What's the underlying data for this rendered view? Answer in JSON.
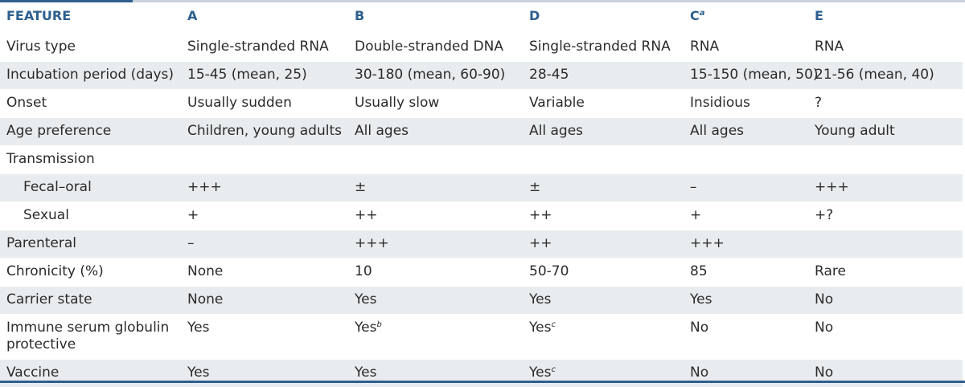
{
  "header": {
    "feature": "FEATURE",
    "a": "A",
    "b": "B",
    "d": "D",
    "c": "C",
    "c_mark": "a",
    "e": "E"
  },
  "rows": [
    {
      "label": "Virus type",
      "a": "Single-stranded RNA",
      "b": "Double-stranded DNA",
      "d": "Single-stranded RNA",
      "c": "RNA",
      "e": "RNA"
    },
    {
      "label": "Incubation period (days)",
      "a": "15-45 (mean, 25)",
      "b": "30-180 (mean, 60-90)",
      "d": "28-45",
      "c": "15-150 (mean, 50)",
      "e": "21-56 (mean, 40)"
    },
    {
      "label": "Onset",
      "a": "Usually sudden",
      "b": "Usually slow",
      "d": "Variable",
      "c": "Insidious",
      "e": "?"
    },
    {
      "label": "Age preference",
      "a": "Children, young adults",
      "b": "All ages",
      "d": "All ages",
      "c": "All ages",
      "e": "Young adult"
    },
    {
      "label": "Transmission",
      "a": "",
      "b": "",
      "d": "",
      "c": "",
      "e": ""
    },
    {
      "label": "Fecal–oral",
      "a": "+++",
      "b": "±",
      "d": "±",
      "c": "–",
      "e": "+++"
    },
    {
      "label": "Sexual",
      "a": "+",
      "b": "++",
      "d": "++",
      "c": "+",
      "e": "+?"
    },
    {
      "label": "Parenteral",
      "a": "–",
      "b": "+++",
      "d": "++",
      "c": "+++",
      "e": ""
    },
    {
      "label": "Chronicity (%)",
      "a": "None",
      "b": "10",
      "d": "50-70",
      "c": "85",
      "e": "Rare"
    },
    {
      "label": "Carrier state",
      "a": "None",
      "b": "Yes",
      "d": "Yes",
      "c": "Yes",
      "e": "No"
    },
    {
      "label": "Immune serum globulin protective",
      "a": "Yes",
      "b": "Yes",
      "b_mark": "b",
      "d": "Yes",
      "d_mark": "c",
      "c": "No",
      "e": "No"
    },
    {
      "label": "Vaccine",
      "a": "Yes",
      "b": "Yes",
      "d": "Yes",
      "d_mark": "c",
      "c": "No",
      "e": "No"
    }
  ]
}
